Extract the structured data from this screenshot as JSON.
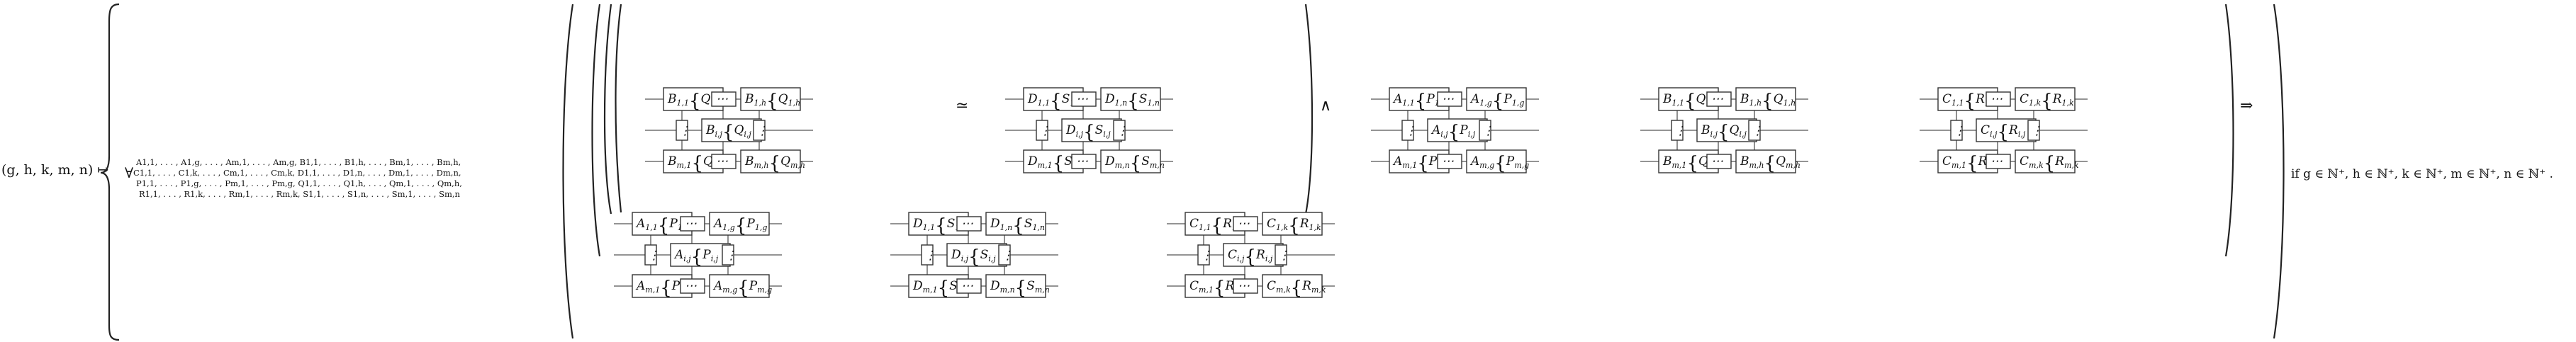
{
  "formula": {
    "lhs": "(g, h, k, m, n) ↦",
    "forall": "∀",
    "quantified_vars": [
      "A1,1, . . . , A1,g, . . . , Am,1, . . . , Am,g, B1,1, . . . , B1,h, . . . , Bm,1, . . . , Bm,h,",
      "C1,1, . . . , C1,k, . . . , Cm,1, . . . , Cm,k, D1,1, . . . , D1,n, . . . , Dm,1, . . . , Dm,n,",
      "P1,1, . . . , P1,g, . . . , Pm,1, . . . , Pm,g, Q1,1, . . . , Q1,h, . . . , Qm,1, . . . , Qm,h,",
      "R1,1, . . . , R1,k, . . . , Rm,1, . . . , Rm,k, S1,1, . . . , S1,n, . . . , Sm,1, . . . , Sm,n"
    ],
    "iso": "≃",
    "and": "∧",
    "implies": "⇒",
    "condition": "if g ∈ ℕ⁺, h ∈ ℕ⁺, k ∈ ℕ⁺, m ∈ ℕ⁺, n ∈ ℕ⁺ ."
  },
  "labels": {
    "ellipsis": "⋯",
    "vdots": "⋮"
  },
  "groups": [
    {
      "id": "g1",
      "letter": "B",
      "sub_letter": "Q",
      "last_col": "h",
      "first_col": "1"
    },
    {
      "id": "g2",
      "letter": "D",
      "sub_letter": "S",
      "last_col": "n",
      "first_col": "1"
    },
    {
      "id": "g3",
      "letter": "A",
      "sub_letter": "P",
      "last_col": "g",
      "first_col": "1"
    },
    {
      "id": "g4",
      "letter": "B",
      "sub_letter": "Q",
      "last_col": "h",
      "first_col": "1"
    },
    {
      "id": "g5",
      "letter": "C",
      "sub_letter": "R",
      "last_col": "k",
      "first_col": "1"
    },
    {
      "id": "g6",
      "letter": "A",
      "sub_letter": "P",
      "last_col": "g",
      "first_col": "1"
    },
    {
      "id": "g7",
      "letter": "D",
      "sub_letter": "S",
      "last_col": "n",
      "first_col": "1"
    },
    {
      "id": "g8",
      "letter": "C",
      "sub_letter": "R",
      "last_col": "k",
      "first_col": "1"
    }
  ]
}
